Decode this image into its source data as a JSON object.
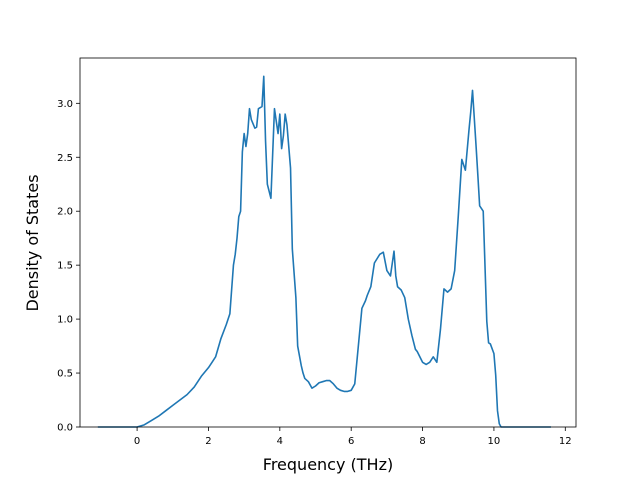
{
  "chart_data": {
    "type": "line",
    "title": "",
    "xlabel": "Frequency (THz)",
    "ylabel": "Density of States",
    "xlim": [
      -1.6,
      12.3
    ],
    "ylim": [
      0,
      3.42
    ],
    "x_ticks": [
      0,
      2,
      4,
      6,
      8,
      10,
      12
    ],
    "y_ticks": [
      0.0,
      0.5,
      1.0,
      1.5,
      2.0,
      2.5,
      3.0
    ],
    "x_tick_labels": [
      "0",
      "2",
      "4",
      "6",
      "8",
      "10",
      "12"
    ],
    "y_tick_labels": [
      "0.0",
      "0.5",
      "1.0",
      "1.5",
      "2.0",
      "2.5",
      "3.0"
    ],
    "grid": false,
    "color": "#1f77b4",
    "series": [
      {
        "x": [
          -1.1,
          -0.5,
          0.0,
          0.2,
          0.4,
          0.6,
          0.8,
          1.0,
          1.2,
          1.4,
          1.6,
          1.7,
          1.8,
          2.0,
          2.1,
          2.2,
          2.35,
          2.5,
          2.6,
          2.7,
          2.75,
          2.8,
          2.85,
          2.9,
          2.95,
          3.0,
          3.05,
          3.1,
          3.15,
          3.2,
          3.3,
          3.35,
          3.4,
          3.5,
          3.55,
          3.6,
          3.65,
          3.75,
          3.85,
          3.95,
          4.0,
          4.05,
          4.1,
          4.15,
          4.2,
          4.3,
          4.35,
          4.45,
          4.5,
          4.6,
          4.65,
          4.7,
          4.8,
          4.9,
          5.0,
          5.1,
          5.2,
          5.3,
          5.4,
          5.5,
          5.6,
          5.7,
          5.8,
          5.9,
          6.0,
          6.1,
          6.2,
          6.3,
          6.4,
          6.45,
          6.55,
          6.65,
          6.8,
          6.9,
          7.0,
          7.1,
          7.2,
          7.25,
          7.3,
          7.4,
          7.5,
          7.6,
          7.7,
          7.8,
          7.85,
          8.0,
          8.1,
          8.2,
          8.3,
          8.4,
          8.5,
          8.6,
          8.7,
          8.8,
          8.9,
          9.0,
          9.1,
          9.2,
          9.3,
          9.35,
          9.4,
          9.5,
          9.55,
          9.6,
          9.7,
          9.8,
          9.85,
          9.9,
          10.0,
          10.05,
          10.1,
          10.15,
          10.2,
          10.3,
          10.4,
          10.5,
          10.6,
          10.7,
          11.0,
          11.6
        ],
        "y": [
          0.0,
          0.0,
          0.0,
          0.02,
          0.06,
          0.1,
          0.15,
          0.2,
          0.25,
          0.3,
          0.37,
          0.42,
          0.47,
          0.55,
          0.6,
          0.65,
          0.82,
          0.95,
          1.05,
          1.5,
          1.6,
          1.75,
          1.95,
          2.0,
          2.55,
          2.72,
          2.6,
          2.72,
          2.95,
          2.85,
          2.77,
          2.78,
          2.95,
          2.97,
          3.25,
          2.65,
          2.25,
          2.12,
          2.95,
          2.72,
          2.9,
          2.58,
          2.7,
          2.9,
          2.8,
          2.4,
          1.65,
          1.2,
          0.75,
          0.57,
          0.5,
          0.45,
          0.42,
          0.36,
          0.38,
          0.41,
          0.42,
          0.43,
          0.43,
          0.4,
          0.36,
          0.34,
          0.33,
          0.33,
          0.34,
          0.4,
          0.75,
          1.1,
          1.17,
          1.22,
          1.3,
          1.52,
          1.6,
          1.62,
          1.45,
          1.4,
          1.63,
          1.4,
          1.3,
          1.27,
          1.2,
          1.0,
          0.85,
          0.72,
          0.7,
          0.6,
          0.58,
          0.6,
          0.65,
          0.6,
          0.9,
          1.28,
          1.25,
          1.28,
          1.45,
          1.95,
          2.48,
          2.38,
          2.75,
          2.92,
          3.12,
          2.6,
          2.33,
          2.05,
          2.0,
          0.98,
          0.78,
          0.77,
          0.68,
          0.48,
          0.15,
          0.03,
          0.0,
          0.0,
          0.0,
          0.0,
          0.0,
          0.0,
          0.0,
          0.0
        ]
      }
    ]
  }
}
